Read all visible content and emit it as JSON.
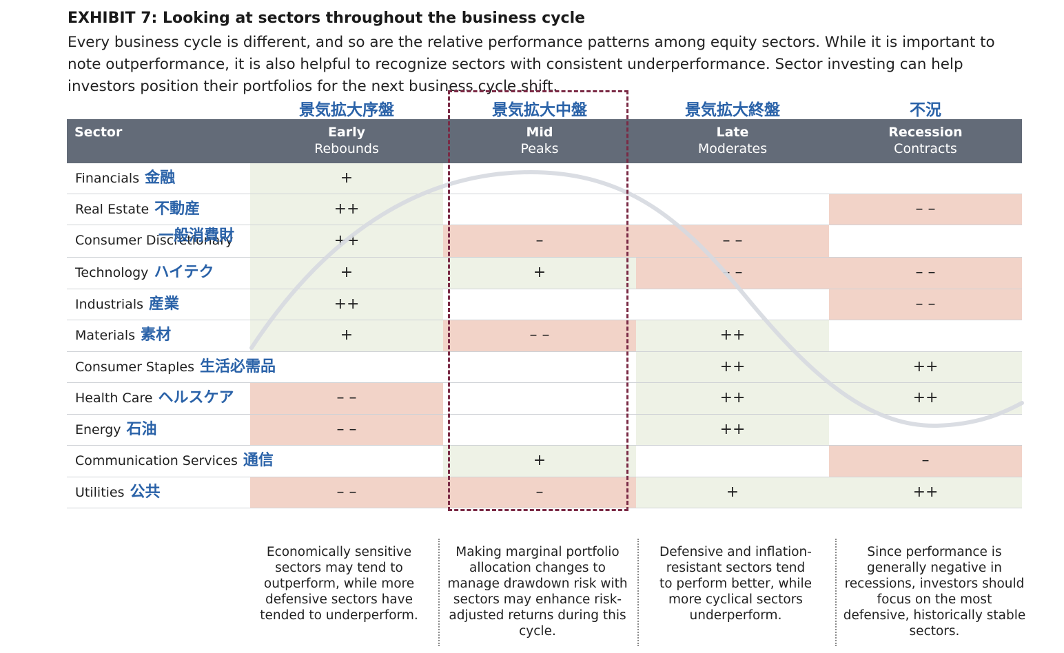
{
  "title": "EXHIBIT 7: Looking at sectors throughout the business cycle",
  "subtitle": "Every business cycle is different, and so are the relative performance patterns among equity sectors. While it is important to note outperformance, it is also helpful to recognize sectors with consistent underperformance. Sector investing can help investors position their portfolios for the next business cycle shift.",
  "phases_jp": [
    "景気拡大序盤",
    "景気拡大中盤",
    "景気拡大終盤",
    "不況"
  ],
  "header": {
    "sector": "Sector",
    "phases": [
      {
        "name": "Early",
        "sub": "Rebounds"
      },
      {
        "name": "Mid",
        "sub": "Peaks"
      },
      {
        "name": "Late",
        "sub": "Moderates"
      },
      {
        "name": "Recession",
        "sub": "Contracts"
      }
    ]
  },
  "rows": [
    {
      "name": "Financials",
      "jp": "金融",
      "cells": [
        {
          "v": "+",
          "t": "pos"
        },
        {
          "v": "",
          "t": ""
        },
        {
          "v": "",
          "t": ""
        },
        {
          "v": "",
          "t": ""
        }
      ]
    },
    {
      "name": "Real Estate",
      "jp": "不動産",
      "cells": [
        {
          "v": "++",
          "t": "pos"
        },
        {
          "v": "",
          "t": ""
        },
        {
          "v": "",
          "t": ""
        },
        {
          "v": "– –",
          "t": "neg"
        }
      ]
    },
    {
      "name": "Consumer Discretionary",
      "jp": "",
      "cells": [
        {
          "v": "++",
          "t": "pos"
        },
        {
          "v": "–",
          "t": "neg"
        },
        {
          "v": "– –",
          "t": "neg"
        },
        {
          "v": "",
          "t": ""
        }
      ]
    },
    {
      "name": "Technology",
      "jp": "ハイテク",
      "cells": [
        {
          "v": "+",
          "t": "pos"
        },
        {
          "v": "+",
          "t": "pos"
        },
        {
          "v": "– –",
          "t": "neg"
        },
        {
          "v": "– –",
          "t": "neg"
        }
      ]
    },
    {
      "name": "Industrials",
      "jp": "産業",
      "cells": [
        {
          "v": "++",
          "t": "pos"
        },
        {
          "v": "",
          "t": ""
        },
        {
          "v": "",
          "t": ""
        },
        {
          "v": "– –",
          "t": "neg"
        }
      ]
    },
    {
      "name": "Materials",
      "jp": "素材",
      "cells": [
        {
          "v": "+",
          "t": "pos"
        },
        {
          "v": "– –",
          "t": "neg"
        },
        {
          "v": "++",
          "t": "pos"
        },
        {
          "v": "",
          "t": ""
        }
      ]
    },
    {
      "name": "Consumer Staples",
      "jp": "生活必需品",
      "cells": [
        {
          "v": "",
          "t": ""
        },
        {
          "v": "",
          "t": ""
        },
        {
          "v": "++",
          "t": "pos"
        },
        {
          "v": "++",
          "t": "pos"
        }
      ]
    },
    {
      "name": "Health Care",
      "jp": "ヘルスケア",
      "cells": [
        {
          "v": "– –",
          "t": "neg"
        },
        {
          "v": "",
          "t": ""
        },
        {
          "v": "++",
          "t": "pos"
        },
        {
          "v": "++",
          "t": "pos"
        }
      ]
    },
    {
      "name": "Energy",
      "jp": "石油",
      "cells": [
        {
          "v": "– –",
          "t": "neg"
        },
        {
          "v": "",
          "t": ""
        },
        {
          "v": "++",
          "t": "pos"
        },
        {
          "v": "",
          "t": ""
        }
      ]
    },
    {
      "name": "Communication Services",
      "jp": "通信",
      "cells": [
        {
          "v": "",
          "t": ""
        },
        {
          "v": "+",
          "t": "pos"
        },
        {
          "v": "",
          "t": ""
        },
        {
          "v": "–",
          "t": "neg"
        }
      ]
    },
    {
      "name": "Utilities",
      "jp": "公共",
      "cells": [
        {
          "v": "– –",
          "t": "neg"
        },
        {
          "v": "–",
          "t": "neg"
        },
        {
          "v": "+",
          "t": "pos"
        },
        {
          "v": "++",
          "t": "pos"
        }
      ]
    }
  ],
  "consumer_disc_jp": "一般消費財",
  "notes": [
    "Economically sensitive sectors may tend to outperform, while more defensive sectors have tended to underperform.",
    "Making marginal portfolio allocation changes to manage drawdown risk with sectors may enhance risk-adjusted returns during this cycle.",
    "Defensive and inflation-resistant sectors tend to perform better, while more cyclical sectors underperform.",
    "Since performance is generally negative in recessions, investors should focus on the most defensive, historically stable sectors."
  ],
  "colors": {
    "header_bg": "#636b78",
    "positive": "#eef2e6",
    "negative": "#f2d3c8",
    "jp_text": "#2a62a8",
    "dash": "#7a2a45",
    "wave": "#d6d9e0"
  }
}
